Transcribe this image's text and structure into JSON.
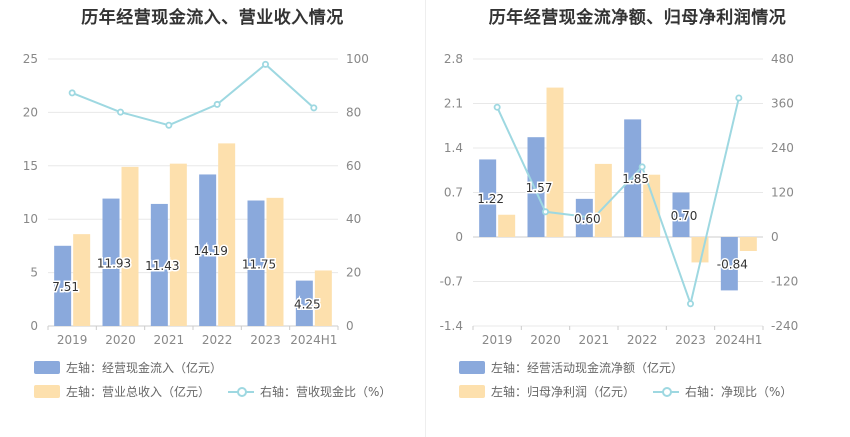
{
  "charts": [
    {
      "title": "历年经营现金流入、营业收入情况",
      "legend_row1": [
        {
          "label": "左轴：经营现金流入（亿元）",
          "color": "#8aa9dc",
          "kind": "bar"
        }
      ],
      "legend_row2": [
        {
          "label": "左轴：营业总收入（亿元）",
          "color": "#fde0ad",
          "kind": "bar"
        },
        {
          "label": "右轴：营收现金比（%）",
          "color": "#9ed8e1",
          "kind": "line"
        }
      ]
    },
    {
      "title": "历年经营现金流净额、归母净利润情况",
      "legend_row1": [
        {
          "label": "左轴：经营活动现金流净额（亿元）",
          "color": "#8aa9dc",
          "kind": "bar"
        }
      ],
      "legend_row2": [
        {
          "label": "左轴：归母净利润（亿元）",
          "color": "#fde0ad",
          "kind": "bar"
        },
        {
          "label": "右轴：净现比（%）",
          "color": "#9ed8e1",
          "kind": "line"
        }
      ]
    }
  ],
  "chart_data": [
    {
      "type": "bar",
      "title": "历年经营现金流入、营业收入情况",
      "categories": [
        "2019",
        "2020",
        "2021",
        "2022",
        "2023",
        "2024H1"
      ],
      "y_left": {
        "min": 0,
        "max": 25,
        "ticks": [
          0,
          5,
          10,
          15,
          20,
          25
        ]
      },
      "y_right": {
        "min": 0,
        "max": 100,
        "ticks": [
          0,
          20,
          40,
          60,
          80,
          100
        ]
      },
      "series": [
        {
          "name": "左轴：经营现金流入（亿元）",
          "axis": "left",
          "kind": "bar",
          "color": "#8aa9dc",
          "values": [
            7.51,
            11.93,
            11.43,
            14.19,
            11.75,
            4.25
          ],
          "labels": [
            "7.51",
            "11.93",
            "11.43",
            "14.19",
            "11.75",
            "4.25"
          ]
        },
        {
          "name": "左轴：营业总收入（亿元）",
          "axis": "left",
          "kind": "bar",
          "color": "#fde0ad",
          "values": [
            8.6,
            14.9,
            15.2,
            17.1,
            12.0,
            5.2
          ]
        },
        {
          "name": "右轴：营收现金比（%）",
          "axis": "right",
          "kind": "line",
          "color": "#9ed8e1",
          "values": [
            87.3,
            80.1,
            75.2,
            83.0,
            98.0,
            81.7
          ]
        }
      ],
      "grid": true
    },
    {
      "type": "bar",
      "title": "历年经营现金流净额、归母净利润情况",
      "categories": [
        "2019",
        "2020",
        "2021",
        "2022",
        "2023",
        "2024H1"
      ],
      "y_left": {
        "min": -1.4,
        "max": 2.8,
        "ticks": [
          -1.4,
          -0.7,
          0,
          0.7,
          1.4,
          2.1,
          2.8
        ]
      },
      "y_right": {
        "min": -240,
        "max": 480,
        "ticks": [
          -240,
          -120,
          0,
          120,
          240,
          360,
          480
        ]
      },
      "series": [
        {
          "name": "左轴：经营活动现金流净额（亿元）",
          "axis": "left",
          "kind": "bar",
          "color": "#8aa9dc",
          "values": [
            1.22,
            1.57,
            0.6,
            1.85,
            0.7,
            -0.84
          ],
          "labels": [
            "1.22",
            "1.57",
            "0.60",
            "1.85",
            "0.70",
            "-0.84"
          ]
        },
        {
          "name": "左轴：归母净利润（亿元）",
          "axis": "left",
          "kind": "bar",
          "color": "#fde0ad",
          "values": [
            0.35,
            2.35,
            1.15,
            0.98,
            -0.4,
            -0.22
          ]
        },
        {
          "name": "右轴：净现比（%）",
          "axis": "right",
          "kind": "line",
          "color": "#9ed8e1",
          "values": [
            350,
            68,
            52,
            189,
            -180,
            375
          ]
        }
      ],
      "grid": true
    }
  ]
}
